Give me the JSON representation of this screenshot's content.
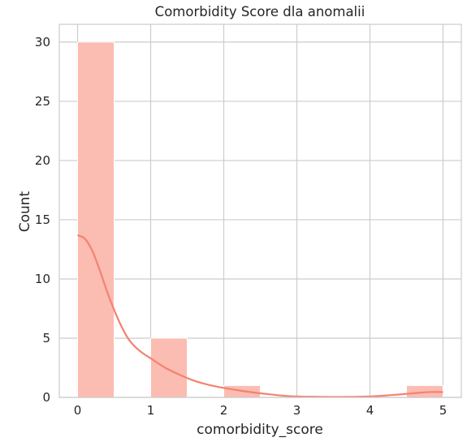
{
  "chart_data": {
    "type": "bar",
    "title": "Comorbidity Score dla anomalii",
    "xlabel": "comorbidity_score",
    "ylabel": "Count",
    "xlim": [
      -0.25,
      5.25
    ],
    "ylim": [
      0,
      31.5
    ],
    "xticks": [
      0,
      1,
      2,
      3,
      4,
      5
    ],
    "yticks": [
      0,
      5,
      10,
      15,
      20,
      25,
      30
    ],
    "grid": true,
    "bins": [
      {
        "start": 0.0,
        "end": 0.5,
        "count": 30
      },
      {
        "start": 0.5,
        "end": 1.0,
        "count": 0
      },
      {
        "start": 1.0,
        "end": 1.5,
        "count": 5
      },
      {
        "start": 1.5,
        "end": 2.0,
        "count": 0
      },
      {
        "start": 2.0,
        "end": 2.5,
        "count": 1
      },
      {
        "start": 2.5,
        "end": 3.0,
        "count": 0
      },
      {
        "start": 3.0,
        "end": 3.5,
        "count": 0
      },
      {
        "start": 3.5,
        "end": 4.0,
        "count": 0
      },
      {
        "start": 4.0,
        "end": 4.5,
        "count": 0
      },
      {
        "start": 4.5,
        "end": 5.0,
        "count": 1
      }
    ],
    "kde": {
      "x": [
        0,
        0.1,
        0.2,
        0.3,
        0.4,
        0.5,
        0.6,
        0.7,
        0.8,
        0.9,
        1.0,
        1.2,
        1.4,
        1.6,
        1.8,
        2.0,
        2.2,
        2.4,
        2.6,
        2.8,
        3.0,
        3.5,
        4.0,
        4.3,
        4.6,
        4.8,
        5.0
      ],
      "y": [
        13.7,
        13.4,
        12.4,
        10.8,
        9.0,
        7.4,
        6.0,
        4.9,
        4.2,
        3.7,
        3.3,
        2.5,
        1.9,
        1.4,
        1.05,
        0.8,
        0.6,
        0.42,
        0.28,
        0.15,
        0.08,
        0.04,
        0.08,
        0.2,
        0.35,
        0.45,
        0.45
      ]
    },
    "colors": {
      "bar_fill": "#fbbcb2",
      "bar_edge": "#ffffff",
      "kde_line": "#f48270",
      "grid": "#cccccc",
      "axes_edge": "#cccccc",
      "text": "#262626"
    }
  }
}
